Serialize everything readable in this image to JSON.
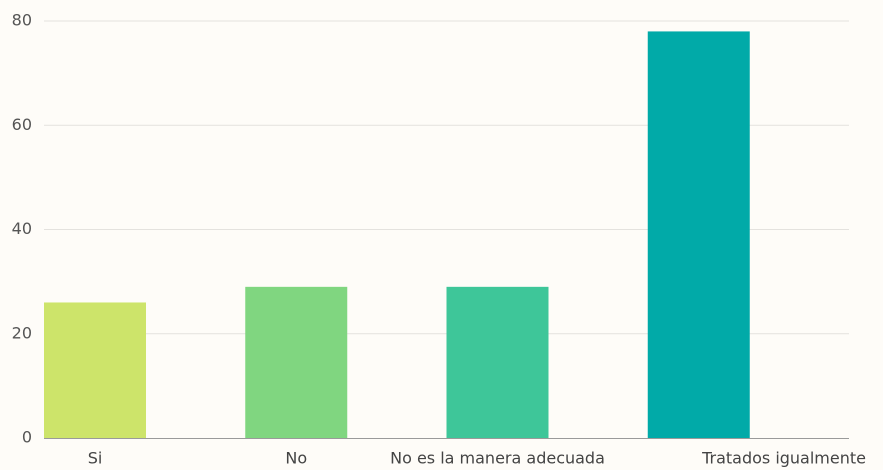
{
  "chart_data": {
    "type": "bar",
    "title": "",
    "xlabel": "",
    "ylabel": "",
    "categories": [
      "Si",
      "No",
      "No es la manera adecuada",
      "Tratados igualmente"
    ],
    "values": [
      26,
      29,
      29,
      78
    ],
    "ylim": [
      0,
      80
    ],
    "yticks": [
      0,
      20,
      40,
      60,
      80
    ],
    "grid": true,
    "legend": "none",
    "colors": [
      "#cde46a",
      "#80d680",
      "#3ec699",
      "#01aaa8"
    ]
  }
}
